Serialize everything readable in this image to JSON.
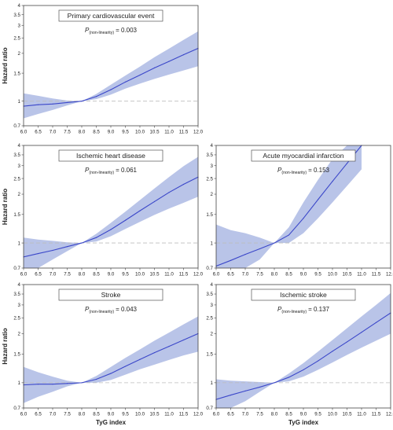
{
  "chart_data": [
    {
      "type": "line",
      "title": "Primary cardiovascular event",
      "annotation": {
        "p_letter": "P",
        "p_subscript": "(non-linearity)",
        "p_value": "= 0.003"
      },
      "ylabel": "Hazard ratio",
      "xlabel": "",
      "xlim": [
        6.0,
        12.0
      ],
      "ylim": [
        0.7,
        4
      ],
      "yscale": "log",
      "reference_line": 1,
      "xticks": [
        "6.0",
        "6.5",
        "7.0",
        "7.5",
        "8.0",
        "8.5",
        "9.0",
        "9.5",
        "10.0",
        "10.5",
        "11.0",
        "11.5",
        "12.0"
      ],
      "yticks": [
        "0.7",
        "1",
        "1.5",
        "2",
        "2.5",
        "3",
        "3.5",
        "4"
      ],
      "colors": {
        "line": "#3b47c9",
        "band": "#b9c4e8",
        "reference": "#bdbdbd"
      },
      "x": [
        6.0,
        6.5,
        7.0,
        7.5,
        8.0,
        8.5,
        9.0,
        9.5,
        10.0,
        10.5,
        11.0,
        11.5,
        12.0
      ],
      "y": [
        0.93,
        0.95,
        0.96,
        0.98,
        1.0,
        1.07,
        1.18,
        1.32,
        1.46,
        1.62,
        1.78,
        1.96,
        2.15
      ],
      "lower": [
        0.78,
        0.83,
        0.88,
        0.94,
        1.0,
        1.03,
        1.1,
        1.2,
        1.29,
        1.38,
        1.47,
        1.56,
        1.66
      ],
      "upper": [
        1.12,
        1.08,
        1.04,
        1.01,
        1.0,
        1.11,
        1.27,
        1.45,
        1.65,
        1.89,
        2.14,
        2.43,
        2.75
      ]
    },
    {
      "type": "line",
      "title": "Ischemic heart disease",
      "annotation": {
        "p_letter": "P",
        "p_subscript": "(non-linearity)",
        "p_value": "= 0.061"
      },
      "ylabel": "Hazard ratio",
      "xlabel": "",
      "xlim": [
        6.0,
        12.0
      ],
      "ylim": [
        0.7,
        4
      ],
      "yscale": "log",
      "reference_line": 1,
      "xticks": [
        "6.0",
        "6.5",
        "7.0",
        "7.5",
        "8.0",
        "8.5",
        "9.0",
        "9.5",
        "10.0",
        "10.5",
        "11.0",
        "11.5",
        "12.0"
      ],
      "yticks": [
        "0.7",
        "1",
        "1.5",
        "2",
        "2.5",
        "3",
        "3.5",
        "4"
      ],
      "colors": {
        "line": "#3b47c9",
        "band": "#b9c4e8",
        "reference": "#bdbdbd"
      },
      "x": [
        6.0,
        6.5,
        7.0,
        7.5,
        8.0,
        8.5,
        9.0,
        9.5,
        10.0,
        10.5,
        11.0,
        11.5,
        12.0
      ],
      "y": [
        0.82,
        0.86,
        0.9,
        0.95,
        1.0,
        1.08,
        1.21,
        1.38,
        1.58,
        1.8,
        2.05,
        2.3,
        2.55
      ],
      "lower": [
        0.62,
        0.7,
        0.79,
        0.89,
        1.0,
        1.02,
        1.1,
        1.22,
        1.35,
        1.49,
        1.63,
        1.77,
        1.93
      ],
      "upper": [
        1.08,
        1.05,
        1.03,
        1.01,
        1.0,
        1.14,
        1.33,
        1.56,
        1.84,
        2.17,
        2.55,
        2.98,
        3.4
      ]
    },
    {
      "type": "line",
      "title": "Acute myocardial infarction",
      "annotation": {
        "p_letter": "P",
        "p_subscript": "(non-linearity)",
        "p_value": "= 0.153"
      },
      "ylabel": "",
      "xlabel": "",
      "xlim": [
        6.0,
        12.0
      ],
      "ylim": [
        0.7,
        4
      ],
      "yscale": "log",
      "reference_line": 1,
      "xticks": [
        "6.0",
        "6.5",
        "7.0",
        "7.5",
        "8.0",
        "8.5",
        "9.0",
        "9.5",
        "10.0",
        "10.5",
        "11.0",
        "11.5",
        "12.0"
      ],
      "yticks": [
        "0.7",
        "1",
        "1.5",
        "2",
        "2.5",
        "3",
        "3.5",
        "4"
      ],
      "colors": {
        "line": "#3b47c9",
        "band": "#b9c4e8",
        "reference": "#bdbdbd"
      },
      "x": [
        6.0,
        6.5,
        7.0,
        7.5,
        8.0,
        8.5,
        9.0,
        9.5,
        10.0,
        10.5,
        11.0
      ],
      "y": [
        0.72,
        0.78,
        0.85,
        0.92,
        1.0,
        1.12,
        1.42,
        1.85,
        2.4,
        3.1,
        4.0
      ],
      "lower": [
        0.4,
        0.5,
        0.62,
        0.79,
        1.0,
        1.0,
        1.15,
        1.42,
        1.78,
        2.25,
        2.85
      ],
      "upper": [
        1.3,
        1.2,
        1.15,
        1.08,
        1.0,
        1.25,
        1.78,
        2.45,
        3.3,
        4.0,
        4.0
      ]
    },
    {
      "type": "line",
      "title": "Stroke",
      "annotation": {
        "p_letter": "P",
        "p_subscript": "(non-linearity)",
        "p_value": "= 0.043"
      },
      "ylabel": "Hazard ratio",
      "xlabel": "TyG index",
      "xlim": [
        6.0,
        12.0
      ],
      "ylim": [
        0.7,
        4
      ],
      "yscale": "log",
      "reference_line": 1,
      "xticks": [
        "6.0",
        "6.5",
        "7.0",
        "7.5",
        "8.0",
        "8.5",
        "9.0",
        "9.5",
        "10.0",
        "10.5",
        "11.0",
        "11.5",
        "12.0"
      ],
      "yticks": [
        "0.7",
        "1",
        "1.5",
        "2",
        "2.5",
        "3",
        "3.5",
        "4"
      ],
      "colors": {
        "line": "#3b47c9",
        "band": "#b9c4e8",
        "reference": "#bdbdbd"
      },
      "x": [
        6.0,
        6.5,
        7.0,
        7.5,
        8.0,
        8.5,
        9.0,
        9.5,
        10.0,
        10.5,
        11.0,
        11.5,
        12.0
      ],
      "y": [
        0.97,
        0.98,
        0.98,
        0.99,
        1.0,
        1.05,
        1.14,
        1.26,
        1.39,
        1.53,
        1.67,
        1.83,
        2.0
      ],
      "lower": [
        0.75,
        0.82,
        0.88,
        0.95,
        1.0,
        1.0,
        1.04,
        1.12,
        1.21,
        1.29,
        1.38,
        1.47,
        1.55
      ],
      "upper": [
        1.25,
        1.16,
        1.09,
        1.03,
        1.0,
        1.1,
        1.25,
        1.42,
        1.6,
        1.81,
        2.03,
        2.28,
        2.55
      ]
    },
    {
      "type": "line",
      "title": "Ischemic stroke",
      "annotation": {
        "p_letter": "P",
        "p_subscript": "(non-linearity)",
        "p_value": "= 0.137"
      },
      "ylabel": "",
      "xlabel": "TyG index",
      "xlim": [
        6.0,
        12.0
      ],
      "ylim": [
        0.7,
        4
      ],
      "yscale": "log",
      "reference_line": 1,
      "xticks": [
        "6.0",
        "6.5",
        "7.0",
        "7.5",
        "8.0",
        "8.5",
        "9.0",
        "9.5",
        "10.0",
        "10.5",
        "11.0",
        "11.5",
        "12.0"
      ],
      "yticks": [
        "0.7",
        "1",
        "1.5",
        "2",
        "2.5",
        "3",
        "3.5",
        "4"
      ],
      "colors": {
        "line": "#3b47c9",
        "band": "#b9c4e8",
        "reference": "#bdbdbd"
      },
      "x": [
        6.0,
        6.5,
        7.0,
        7.5,
        8.0,
        8.5,
        9.0,
        9.5,
        10.0,
        10.5,
        11.0,
        11.5,
        12.0
      ],
      "y": [
        0.79,
        0.84,
        0.89,
        0.94,
        1.0,
        1.08,
        1.2,
        1.36,
        1.56,
        1.78,
        2.04,
        2.34,
        2.68
      ],
      "lower": [
        0.6,
        0.68,
        0.77,
        0.88,
        1.0,
        1.02,
        1.09,
        1.2,
        1.33,
        1.48,
        1.64,
        1.81,
        2.0
      ],
      "upper": [
        1.05,
        1.03,
        1.02,
        1.01,
        1.0,
        1.14,
        1.32,
        1.55,
        1.83,
        2.16,
        2.55,
        3.0,
        3.55
      ]
    }
  ]
}
